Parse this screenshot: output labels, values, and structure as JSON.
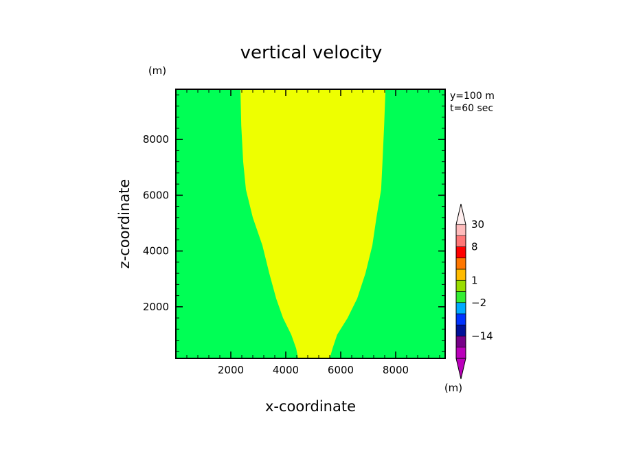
{
  "chart_data": {
    "type": "heatmap",
    "title": "vertical velocity",
    "xlabel": "x-coordinate",
    "ylabel": "z-coordinate",
    "y_unit": "(m)",
    "annotations": [
      "y=100 m",
      "t=60 sec"
    ],
    "xlim": [
      0,
      9800
    ],
    "ylim": [
      150,
      9800
    ],
    "x_ticks": [
      2000,
      4000,
      6000,
      8000
    ],
    "y_ticks": [
      2000,
      4000,
      6000,
      8000
    ],
    "x_minor_step": 400,
    "y_minor_step": 400,
    "background_color": "#00ff55",
    "region": {
      "name": "positive-velocity-plume",
      "color": "#eeff00",
      "left_boundary": [
        [
          4450,
          150
        ],
        [
          4380,
          500
        ],
        [
          4200,
          1000
        ],
        [
          3900,
          1600
        ],
        [
          3650,
          2300
        ],
        [
          3400,
          3200
        ],
        [
          3150,
          4200
        ],
        [
          2800,
          5200
        ],
        [
          2550,
          6200
        ],
        [
          2450,
          7200
        ],
        [
          2380,
          8500
        ],
        [
          2350,
          9800
        ]
      ],
      "right_boundary": [
        [
          5600,
          150
        ],
        [
          5700,
          500
        ],
        [
          5870,
          1000
        ],
        [
          6250,
          1600
        ],
        [
          6600,
          2300
        ],
        [
          6900,
          3200
        ],
        [
          7150,
          4200
        ],
        [
          7300,
          5200
        ],
        [
          7470,
          6200
        ],
        [
          7520,
          7200
        ],
        [
          7580,
          8500
        ],
        [
          7630,
          9800
        ]
      ]
    },
    "colorbar": {
      "unit": "(m)",
      "segments": [
        {
          "color": "#bb00bb"
        },
        {
          "color": "#770088"
        },
        {
          "color": "#001199"
        },
        {
          "color": "#0033ff"
        },
        {
          "color": "#00aaff"
        },
        {
          "color": "#33ee33"
        },
        {
          "color": "#99dd00"
        },
        {
          "color": "#ffbb00"
        },
        {
          "color": "#ff7700"
        },
        {
          "color": "#ff0000"
        },
        {
          "color": "#ff7777"
        },
        {
          "color": "#ffbbbb"
        }
      ],
      "top_color": "#ffeeee",
      "bottom_color": "#bb00bb",
      "labels": [
        {
          "text": "30",
          "after_segment": 12
        },
        {
          "text": "8",
          "after_segment": 10
        },
        {
          "text": "1",
          "after_segment": 7
        },
        {
          "text": "−2",
          "after_segment": 5
        },
        {
          "text": "−14",
          "after_segment": 2
        }
      ]
    }
  }
}
